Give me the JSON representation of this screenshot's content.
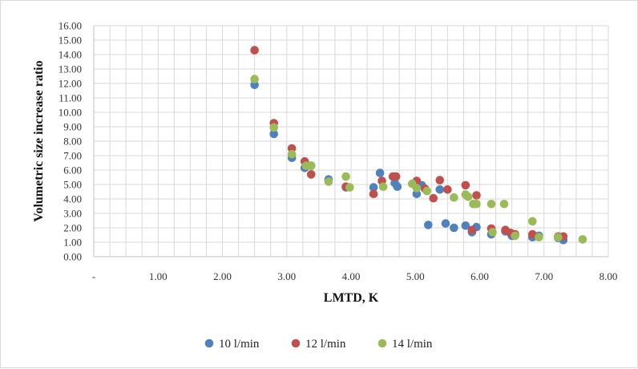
{
  "chart_data": {
    "type": "scatter",
    "title": "",
    "xlabel": "LMTD, K",
    "ylabel": "Volumetric size increase ratio",
    "xlim": [
      0,
      8
    ],
    "ylim": [
      0,
      16
    ],
    "x_tick_labels": [
      "-",
      "1.00",
      "2.00",
      "3.00",
      "4.00",
      "5.00",
      "6.00",
      "7.00",
      "8.00"
    ],
    "y_tick_labels": [
      "0.00",
      "1.00",
      "2.00",
      "3.00",
      "4.00",
      "5.00",
      "6.00",
      "7.00",
      "8.00",
      "9.00",
      "10.00",
      "11.00",
      "12.00",
      "13.00",
      "14.00",
      "15.00",
      "16.00"
    ],
    "grid": true,
    "legend_position": "bottom",
    "series": [
      {
        "name": "10 l/min",
        "color": "#4f81bd",
        "x": [
          2.5,
          2.8,
          3.08,
          3.28,
          3.38,
          3.65,
          3.92,
          4.35,
          4.45,
          4.68,
          4.72,
          5.02,
          5.1,
          5.2,
          5.38,
          5.47,
          5.6,
          5.78,
          5.88,
          5.95,
          6.18,
          6.4,
          6.5,
          6.82,
          6.92,
          7.22,
          7.3
        ],
        "y": [
          11.9,
          8.5,
          6.85,
          6.15,
          6.3,
          5.35,
          4.8,
          4.8,
          5.8,
          5.1,
          4.85,
          4.35,
          4.95,
          2.2,
          4.65,
          2.3,
          2.0,
          2.15,
          1.7,
          2.05,
          1.55,
          1.75,
          1.45,
          1.35,
          1.45,
          1.3,
          1.15
        ]
      },
      {
        "name": "12 l/min",
        "color": "#c0504d",
        "x": [
          2.5,
          2.8,
          3.08,
          3.28,
          3.38,
          3.92,
          4.35,
          4.48,
          4.65,
          4.7,
          5.02,
          5.15,
          5.28,
          5.38,
          5.5,
          5.78,
          5.88,
          5.95,
          6.18,
          6.4,
          6.48,
          6.55,
          6.82,
          7.22,
          7.3
        ],
        "y": [
          14.3,
          9.25,
          7.5,
          6.6,
          5.7,
          4.85,
          4.35,
          5.25,
          5.55,
          5.55,
          5.25,
          4.7,
          4.05,
          5.3,
          4.65,
          4.95,
          1.85,
          4.25,
          1.95,
          1.85,
          1.65,
          1.55,
          1.55,
          1.4,
          1.4
        ]
      },
      {
        "name": "14 l/min",
        "color": "#9bbb59",
        "x": [
          2.5,
          2.8,
          3.08,
          3.3,
          3.38,
          3.65,
          3.92,
          3.98,
          4.5,
          4.95,
          5.02,
          5.18,
          5.6,
          5.78,
          5.82,
          5.9,
          5.95,
          6.18,
          6.2,
          6.38,
          6.55,
          6.82,
          6.92,
          7.22,
          7.6
        ],
        "y": [
          12.3,
          8.95,
          7.1,
          6.3,
          6.3,
          5.2,
          5.55,
          4.8,
          4.85,
          5.05,
          4.75,
          4.55,
          4.1,
          4.3,
          4.15,
          3.65,
          3.65,
          3.65,
          1.7,
          3.65,
          1.45,
          2.45,
          1.35,
          1.35,
          1.2
        ]
      }
    ]
  }
}
